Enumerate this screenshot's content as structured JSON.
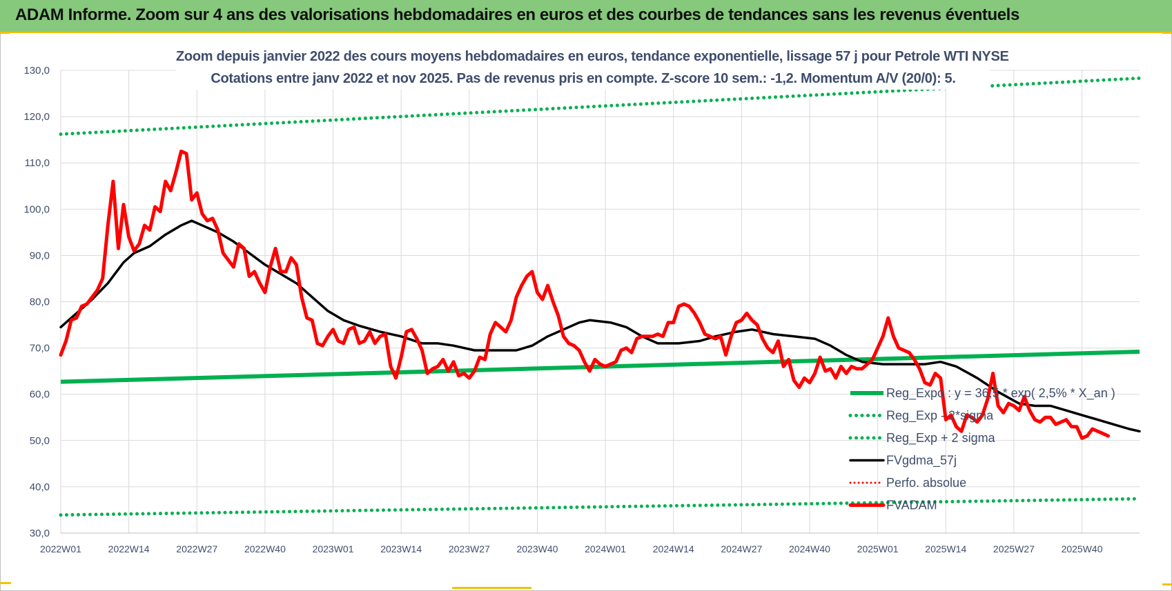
{
  "header": {
    "title": "ADAM Informe. Zoom sur 4 ans des valorisations hebdomadaires en euros et des courbes de tendances sans les revenus éventuels"
  },
  "colors": {
    "banner": "#86c87c",
    "accent_yellow": "#f2c200",
    "trend_green": "#00b050",
    "price_red": "#ff0000",
    "smooth_black": "#000000",
    "text": "#3f4d6b"
  },
  "chart_data": {
    "type": "line",
    "title_line1": "Zoom depuis janvier 2022 des cours moyens hebdomadaires en euros, tendance exponentielle, lissage 57 j pour Petrole WTI NYSE",
    "title_line2": "Cotations entre janv 2022 et nov 2025. Pas de revenus pris en compte. Z-score 10 sem.: -1,2. Momentum A/V (20/0): 5.",
    "ylim": [
      30,
      130
    ],
    "y_ticks": [
      "30,0",
      "40,0",
      "50,0",
      "60,0",
      "70,0",
      "80,0",
      "90,0",
      "100,0",
      "110,0",
      "120,0",
      "130,0"
    ],
    "x_tick_labels": [
      "2022W01",
      "2022W14",
      "2022W27",
      "2022W40",
      "2023W01",
      "2023W14",
      "2023W27",
      "2023W40",
      "2024W01",
      "2024W14",
      "2024W27",
      "2024W40",
      "2025W01",
      "2025W14",
      "2025W27",
      "2025W40"
    ],
    "weeks_per_tick": 13,
    "total_weeks": 207,
    "grid": true,
    "legend_position": "bottom-right",
    "series": [
      {
        "name": "Reg_Expo : y = 36,5 * exp( 2,5% * X_an )",
        "style": "solid-green",
        "points": [
          [
            0,
            62.7
          ],
          [
            206,
            69.2
          ]
        ]
      },
      {
        "name": "Reg_Exp - 2*sigma",
        "style": "dotted-green",
        "points": [
          [
            0,
            33.9
          ],
          [
            206,
            37.4
          ]
        ]
      },
      {
        "name": "Reg_Exp + 2 sigma",
        "style": "dotted-green",
        "points": [
          [
            0,
            116.2
          ],
          [
            206,
            128.3
          ]
        ]
      },
      {
        "name": "FVgdma_57j",
        "style": "solid-black",
        "points": [
          [
            0,
            74.5
          ],
          [
            3,
            77.5
          ],
          [
            6,
            80.5
          ],
          [
            9,
            84.0
          ],
          [
            12,
            88.5
          ],
          [
            14,
            90.5
          ],
          [
            17,
            92.0
          ],
          [
            20,
            94.5
          ],
          [
            23,
            96.5
          ],
          [
            25,
            97.5
          ],
          [
            27,
            96.5
          ],
          [
            30,
            95.0
          ],
          [
            33,
            93.0
          ],
          [
            36,
            90.5
          ],
          [
            39,
            88.0
          ],
          [
            42,
            86.0
          ],
          [
            45,
            84.0
          ],
          [
            48,
            81.0
          ],
          [
            51,
            78.0
          ],
          [
            54,
            76.0
          ],
          [
            57,
            74.8
          ],
          [
            61,
            73.5
          ],
          [
            65,
            72.5
          ],
          [
            69,
            71.0
          ],
          [
            72,
            71.0
          ],
          [
            75,
            70.5
          ],
          [
            79,
            69.5
          ],
          [
            83,
            69.5
          ],
          [
            87,
            69.5
          ],
          [
            90,
            70.5
          ],
          [
            93,
            72.5
          ],
          [
            96,
            74.0
          ],
          [
            99,
            75.5
          ],
          [
            101,
            76.0
          ],
          [
            105,
            75.5
          ],
          [
            108,
            74.5
          ],
          [
            111,
            72.5
          ],
          [
            114,
            71.0
          ],
          [
            118,
            71.0
          ],
          [
            122,
            71.5
          ],
          [
            125,
            72.5
          ],
          [
            129,
            73.5
          ],
          [
            132,
            74.0
          ],
          [
            136,
            73.0
          ],
          [
            140,
            72.5
          ],
          [
            144,
            72.0
          ],
          [
            147,
            70.5
          ],
          [
            150,
            68.5
          ],
          [
            153,
            67.0
          ],
          [
            157,
            66.5
          ],
          [
            161,
            66.5
          ],
          [
            165,
            66.5
          ],
          [
            168,
            67.0
          ],
          [
            171,
            66.0
          ],
          [
            175,
            63.5
          ],
          [
            179,
            60.5
          ],
          [
            183,
            58.0
          ],
          [
            186,
            57.5
          ],
          [
            189,
            57.5
          ],
          [
            192,
            56.5
          ],
          [
            195,
            55.5
          ],
          [
            198,
            54.5
          ],
          [
            201,
            53.5
          ],
          [
            204,
            52.5
          ],
          [
            206,
            52.0
          ]
        ]
      },
      {
        "name": "Perfo. absolue",
        "style": "dotted-red",
        "points": []
      },
      {
        "name": "FVADAM",
        "style": "solid-red",
        "points": [
          [
            0,
            68.5
          ],
          [
            1,
            71.5
          ],
          [
            2,
            76
          ],
          [
            3,
            76.5
          ],
          [
            4,
            79
          ],
          [
            5,
            79.5
          ],
          [
            6,
            81
          ],
          [
            7,
            82.5
          ],
          [
            8,
            85
          ],
          [
            9,
            96.5
          ],
          [
            10,
            106
          ],
          [
            11,
            91.5
          ],
          [
            12,
            101
          ],
          [
            13,
            94
          ],
          [
            14,
            91
          ],
          [
            15,
            92.5
          ],
          [
            16,
            96.5
          ],
          [
            17,
            95.5
          ],
          [
            18,
            100.5
          ],
          [
            19,
            99.5
          ],
          [
            20,
            106
          ],
          [
            21,
            104
          ],
          [
            22,
            108
          ],
          [
            23,
            112.5
          ],
          [
            24,
            112
          ],
          [
            25,
            102
          ],
          [
            26,
            103.5
          ],
          [
            27,
            99
          ],
          [
            28,
            97.5
          ],
          [
            29,
            98
          ],
          [
            30,
            95.5
          ],
          [
            31,
            90.5
          ],
          [
            32,
            89
          ],
          [
            33,
            87.5
          ],
          [
            34,
            92.5
          ],
          [
            35,
            91.5
          ],
          [
            36,
            85.5
          ],
          [
            37,
            86.5
          ],
          [
            38,
            84
          ],
          [
            39,
            82
          ],
          [
            40,
            87.5
          ],
          [
            41,
            91.5
          ],
          [
            42,
            86.5
          ],
          [
            43,
            86.5
          ],
          [
            44,
            89.5
          ],
          [
            45,
            88
          ],
          [
            46,
            81
          ],
          [
            47,
            76.5
          ],
          [
            48,
            76
          ],
          [
            49,
            71
          ],
          [
            50,
            70.5
          ],
          [
            51,
            72.5
          ],
          [
            52,
            74
          ],
          [
            53,
            71.5
          ],
          [
            54,
            71
          ],
          [
            55,
            74
          ],
          [
            56,
            74.5
          ],
          [
            57,
            71
          ],
          [
            58,
            71.5
          ],
          [
            59,
            73.5
          ],
          [
            60,
            71
          ],
          [
            61,
            72.5
          ],
          [
            62,
            73
          ],
          [
            63,
            66
          ],
          [
            64,
            63.5
          ],
          [
            65,
            68
          ],
          [
            66,
            73.5
          ],
          [
            67,
            74
          ],
          [
            68,
            72
          ],
          [
            69,
            69.5
          ],
          [
            70,
            64.5
          ],
          [
            71,
            65.5
          ],
          [
            72,
            66
          ],
          [
            73,
            67.5
          ],
          [
            74,
            65
          ],
          [
            75,
            67
          ],
          [
            76,
            64
          ],
          [
            77,
            64.5
          ],
          [
            78,
            63.5
          ],
          [
            79,
            65
          ],
          [
            80,
            68
          ],
          [
            81,
            67.5
          ],
          [
            82,
            73
          ],
          [
            83,
            75.5
          ],
          [
            84,
            74.5
          ],
          [
            85,
            73.5
          ],
          [
            86,
            76
          ],
          [
            87,
            81
          ],
          [
            88,
            83.5
          ],
          [
            89,
            85.5
          ],
          [
            90,
            86.5
          ],
          [
            91,
            82
          ],
          [
            92,
            80.5
          ],
          [
            93,
            83.5
          ],
          [
            94,
            80
          ],
          [
            95,
            77
          ],
          [
            96,
            72.5
          ],
          [
            97,
            71
          ],
          [
            98,
            70.5
          ],
          [
            99,
            69.5
          ],
          [
            100,
            67
          ],
          [
            101,
            65
          ],
          [
            102,
            67.5
          ],
          [
            103,
            66.5
          ],
          [
            104,
            66
          ],
          [
            105,
            66.5
          ],
          [
            106,
            67
          ],
          [
            107,
            69.5
          ],
          [
            108,
            70
          ],
          [
            109,
            69
          ],
          [
            110,
            72
          ],
          [
            111,
            72.5
          ],
          [
            112,
            72.5
          ],
          [
            113,
            72.5
          ],
          [
            114,
            73
          ],
          [
            115,
            72.5
          ],
          [
            116,
            75.5
          ],
          [
            117,
            75.5
          ],
          [
            118,
            79
          ],
          [
            119,
            79.5
          ],
          [
            120,
            79
          ],
          [
            121,
            77.5
          ],
          [
            122,
            75.5
          ],
          [
            123,
            73
          ],
          [
            124,
            72.5
          ],
          [
            125,
            72
          ],
          [
            126,
            72.5
          ],
          [
            127,
            68.5
          ],
          [
            128,
            72.5
          ],
          [
            129,
            75.5
          ],
          [
            130,
            76
          ],
          [
            131,
            77.5
          ],
          [
            132,
            76
          ],
          [
            133,
            75
          ],
          [
            134,
            72
          ],
          [
            135,
            70
          ],
          [
            136,
            69
          ],
          [
            137,
            71.5
          ],
          [
            138,
            66
          ],
          [
            139,
            67.5
          ],
          [
            140,
            63
          ],
          [
            141,
            61.5
          ],
          [
            142,
            63.5
          ],
          [
            143,
            62.5
          ],
          [
            144,
            64.5
          ],
          [
            145,
            68
          ],
          [
            146,
            65
          ],
          [
            147,
            65.5
          ],
          [
            148,
            63.5
          ],
          [
            149,
            66
          ],
          [
            150,
            64.5
          ],
          [
            151,
            66
          ],
          [
            152,
            65.5
          ],
          [
            153,
            65.5
          ],
          [
            154,
            66.5
          ],
          [
            155,
            67.5
          ],
          [
            156,
            70
          ],
          [
            157,
            72.5
          ],
          [
            158,
            76.5
          ],
          [
            159,
            72.5
          ],
          [
            160,
            70
          ],
          [
            161,
            69.5
          ],
          [
            162,
            69
          ],
          [
            163,
            67.5
          ],
          [
            164,
            65.5
          ],
          [
            165,
            62.5
          ],
          [
            166,
            62
          ],
          [
            167,
            64.5
          ],
          [
            168,
            63.5
          ],
          [
            169,
            54.5
          ],
          [
            170,
            55.5
          ],
          [
            171,
            53
          ],
          [
            172,
            52
          ],
          [
            173,
            55.5
          ],
          [
            174,
            55
          ],
          [
            175,
            54
          ],
          [
            176,
            55.5
          ],
          [
            177,
            59
          ],
          [
            178,
            64.5
          ],
          [
            179,
            57.5
          ],
          [
            180,
            56
          ],
          [
            181,
            58
          ],
          [
            182,
            57.5
          ],
          [
            183,
            56.5
          ],
          [
            184,
            59.5
          ],
          [
            185,
            56.5
          ],
          [
            186,
            54.5
          ],
          [
            187,
            54
          ],
          [
            188,
            55
          ],
          [
            189,
            55
          ],
          [
            190,
            53.5
          ],
          [
            191,
            54
          ],
          [
            192,
            54.5
          ],
          [
            193,
            53
          ],
          [
            194,
            53
          ],
          [
            195,
            50.5
          ],
          [
            196,
            51
          ],
          [
            197,
            52.5
          ],
          [
            198,
            52
          ],
          [
            199,
            51.5
          ],
          [
            200,
            51
          ]
        ]
      }
    ]
  }
}
